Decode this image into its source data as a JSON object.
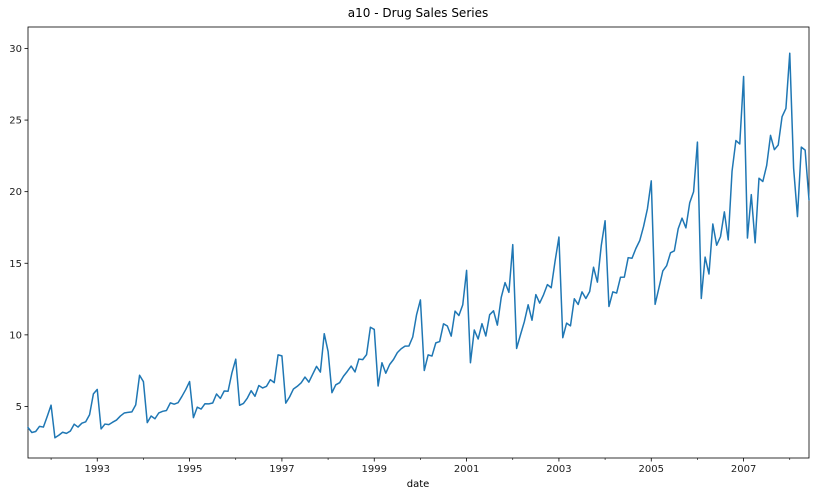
{
  "chart_data": {
    "type": "line",
    "title": "a10 - Drug Sales Series",
    "xlabel": "date",
    "ylabel": "",
    "x_start": "1991-07",
    "x_end": "2008-06",
    "frequency": "monthly",
    "ylim": [
      1.4,
      31.5
    ],
    "yticks": [
      5,
      10,
      15,
      20,
      25,
      30
    ],
    "xticks": [
      "1993",
      "1995",
      "1997",
      "1999",
      "2001",
      "2003",
      "2005",
      "2007"
    ],
    "grid": false,
    "legend": "none",
    "series": [
      {
        "color": "#1f77b4",
        "values": [
          3.53,
          3.18,
          3.25,
          3.61,
          3.56,
          4.31,
          5.09,
          2.81,
          2.99,
          3.2,
          3.12,
          3.28,
          3.76,
          3.56,
          3.83,
          3.93,
          4.42,
          5.88,
          6.19,
          3.43,
          3.77,
          3.73,
          3.9,
          4.05,
          4.33,
          4.54,
          4.59,
          4.62,
          5.11,
          7.18,
          6.73,
          3.87,
          4.33,
          4.14,
          4.55,
          4.66,
          4.72,
          5.25,
          5.16,
          5.26,
          5.7,
          6.18,
          6.74,
          4.22,
          4.95,
          4.82,
          5.19,
          5.18,
          5.24,
          5.87,
          5.56,
          6.08,
          6.06,
          7.34,
          8.3,
          5.08,
          5.21,
          5.58,
          6.1,
          5.71,
          6.46,
          6.29,
          6.41,
          6.87,
          6.66,
          8.6,
          8.53,
          5.23,
          5.67,
          6.22,
          6.41,
          6.65,
          7.05,
          6.7,
          7.25,
          7.8,
          7.4,
          10.08,
          8.84,
          5.96,
          6.51,
          6.66,
          7.11,
          7.45,
          7.82,
          7.41,
          8.31,
          8.27,
          8.62,
          10.53,
          10.38,
          6.43,
          8.05,
          7.32,
          7.93,
          8.28,
          8.76,
          9.03,
          9.21,
          9.22,
          9.85,
          11.41,
          12.44,
          7.51,
          8.6,
          8.52,
          9.44,
          9.53,
          10.77,
          10.62,
          9.91,
          11.66,
          11.35,
          12.09,
          14.5,
          8.05,
          10.34,
          9.71,
          10.78,
          9.92,
          11.41,
          11.68,
          10.68,
          12.61,
          13.65,
          12.97,
          16.3,
          9.05,
          10.0,
          10.91,
          12.1,
          11.02,
          12.81,
          12.22,
          12.8,
          13.51,
          13.29,
          15.15,
          16.83,
          9.8,
          10.82,
          10.63,
          12.52,
          12.12,
          13.0,
          12.54,
          13.03,
          14.72,
          13.68,
          16.23,
          17.97,
          11.98,
          13.0,
          12.92,
          14.02,
          14.03,
          15.39,
          15.35,
          16.03,
          16.58,
          17.57,
          18.8,
          20.75,
          12.13,
          13.29,
          14.46,
          14.83,
          15.73,
          15.87,
          17.41,
          18.15,
          17.47,
          19.23,
          19.99,
          23.46,
          12.54,
          15.43,
          14.25,
          17.74,
          16.26,
          16.86,
          18.59,
          16.63,
          21.43,
          23.57,
          23.33,
          28.04,
          16.76,
          19.79,
          16.43,
          20.94,
          20.71,
          21.83,
          23.93,
          22.93,
          23.26,
          25.24,
          25.81,
          29.67,
          21.65,
          18.26,
          23.11,
          22.9,
          19.43
        ]
      }
    ]
  }
}
